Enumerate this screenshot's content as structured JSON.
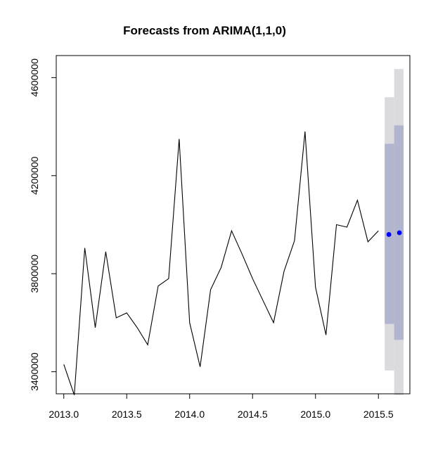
{
  "chart_data": {
    "type": "line",
    "title": "Forecasts from ARIMA(1,1,0)",
    "xlabel": "",
    "ylabel": "",
    "xlim": [
      2012.94,
      2015.75
    ],
    "ylim": [
      3310000,
      4690000
    ],
    "x_ticks": [
      2013.0,
      2013.5,
      2014.0,
      2014.5,
      2015.0,
      2015.5
    ],
    "x_tick_labels": [
      "2013.0",
      "2013.5",
      "2014.0",
      "2014.5",
      "2015.0",
      "2015.5"
    ],
    "y_ticks": [
      3400000,
      3800000,
      4200000,
      4600000
    ],
    "y_tick_labels": [
      "3400000",
      "3800000",
      "4200000",
      "4600000"
    ],
    "grid": false,
    "series": [
      {
        "kind": "observed",
        "color": "#000000",
        "x": [
          2013.0,
          2013.0833,
          2013.1667,
          2013.25,
          2013.3333,
          2013.4167,
          2013.5,
          2013.5833,
          2013.6667,
          2013.75,
          2013.8333,
          2013.9167,
          2014.0,
          2014.0833,
          2014.1667,
          2014.25,
          2014.3333,
          2014.4167,
          2014.5,
          2014.5833,
          2014.6667,
          2014.75,
          2014.8333,
          2014.9167,
          2015.0,
          2015.0833,
          2015.1667,
          2015.25,
          2015.3333,
          2015.4167,
          2015.5
        ],
        "y": [
          3430000,
          3305000,
          3905000,
          3580000,
          3890000,
          3620000,
          3640000,
          3580000,
          3510000,
          3750000,
          3780000,
          4350000,
          3600000,
          3420000,
          3735000,
          3825000,
          3975000,
          3880000,
          3780000,
          3690000,
          3600000,
          3810000,
          3935000,
          4380000,
          3745000,
          3550000,
          4000000,
          3990000,
          4100000,
          3930000,
          3975000
        ]
      },
      {
        "kind": "forecast",
        "color": "#0000ff",
        "x": [
          2015.5833,
          2015.6667
        ],
        "y": [
          3960000,
          3967000
        ]
      }
    ],
    "intervals": [
      {
        "level": "95",
        "color": "#dbdbdf",
        "bands": [
          {
            "x0": 2015.55,
            "x1": 2015.625,
            "lower": 3405000,
            "upper": 4520000
          },
          {
            "x0": 2015.625,
            "x1": 2015.7,
            "lower": 3305000,
            "upper": 4635000
          }
        ]
      },
      {
        "level": "80",
        "color": "#b1b5ce",
        "bands": [
          {
            "x0": 2015.55,
            "x1": 2015.625,
            "lower": 3595000,
            "upper": 4330000
          },
          {
            "x0": 2015.625,
            "x1": 2015.7,
            "lower": 3530000,
            "upper": 4405000
          }
        ]
      }
    ]
  }
}
